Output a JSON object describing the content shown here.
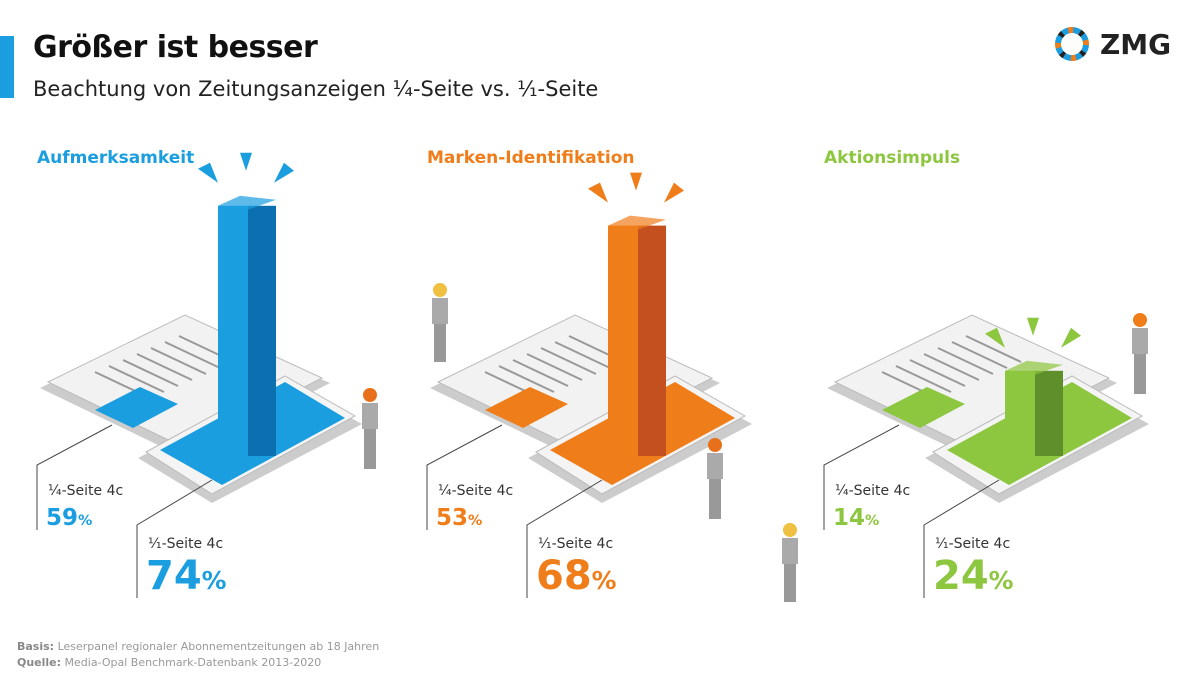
{
  "header": {
    "title": "Größer ist besser",
    "subtitle": "Beachtung von Zeitungsanzeigen ¼-Seite vs. ⅟₁-Seite",
    "logo_text": "ZMG"
  },
  "chart_data": {
    "type": "bar",
    "title": "Größer ist besser",
    "subtitle": "Beachtung von Zeitungsanzeigen ¼-Seite vs. ⅟₁-Seite",
    "unit": "%",
    "categories": [
      "Aufmerksamkeit",
      "Marken-Identifikation",
      "Aktionsimpuls"
    ],
    "series": [
      {
        "name": "¼-Seite 4c",
        "values": [
          59,
          53,
          14
        ]
      },
      {
        "name": "⅟₁-Seite 4c",
        "values": [
          74,
          68,
          24
        ]
      }
    ],
    "colors": [
      "#1a9ee0",
      "#ef7d1a",
      "#8dc63f"
    ],
    "dark_colors": [
      "#0b6fb0",
      "#c4501f",
      "#5f8f2a"
    ]
  },
  "footer": {
    "basis_label": "Basis:",
    "basis_text": "Leserpanel regionaler Abonnementzeitungen ab 18 Jahren",
    "source_label": "Quelle:",
    "source_text": "Media-Opal Benchmark-Datenbank 2013-2020"
  }
}
